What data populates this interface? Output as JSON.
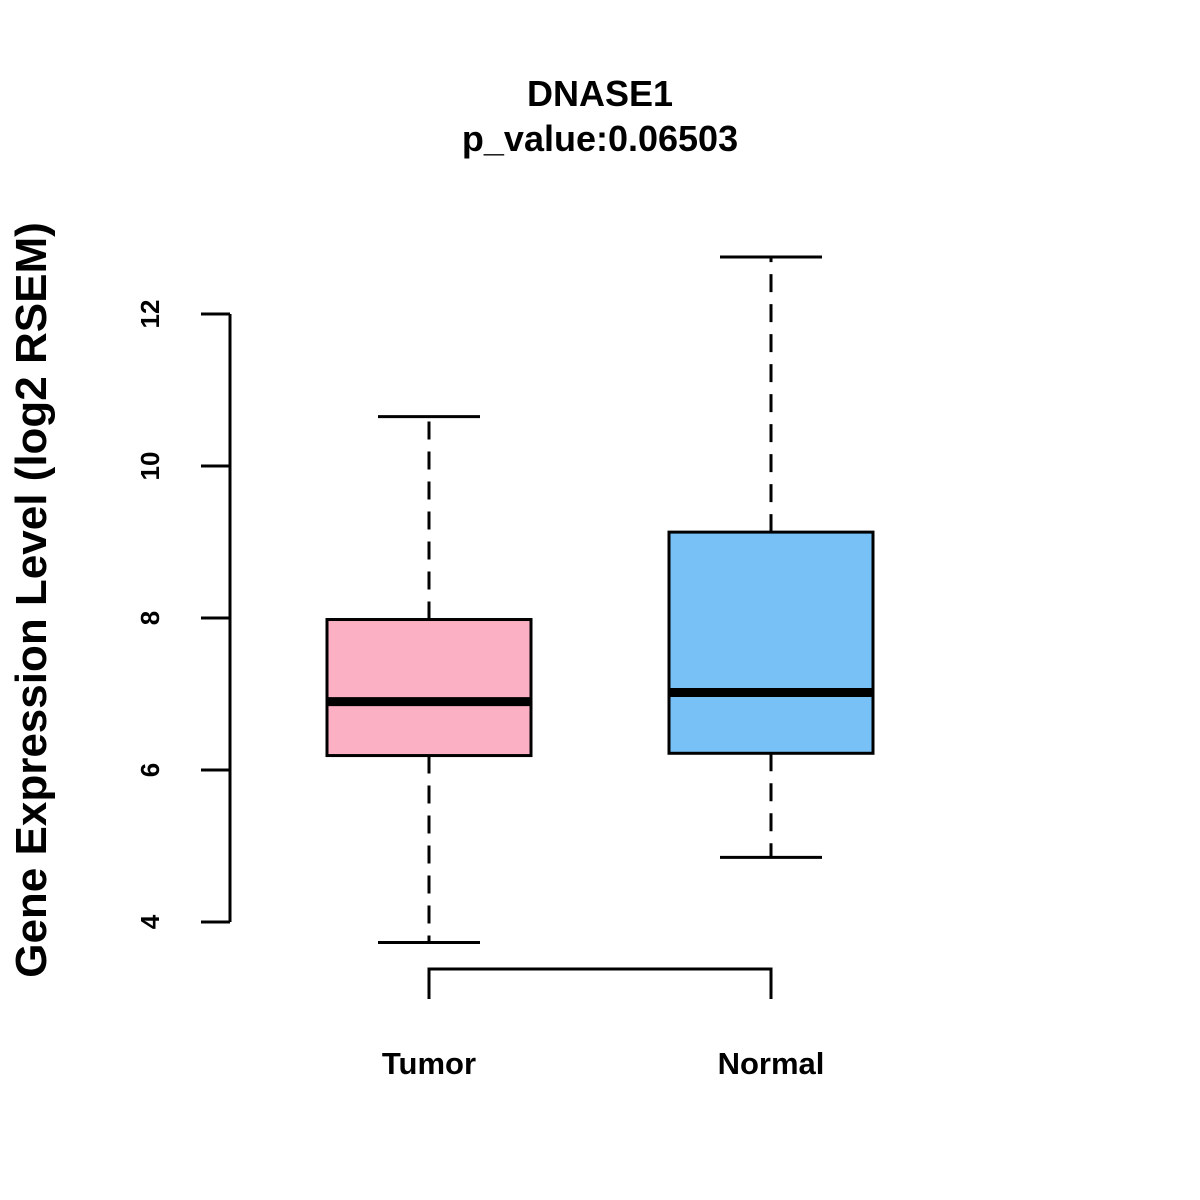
{
  "chart_data": {
    "type": "box",
    "title": "DNASE1",
    "subtitle": "p_value:0.06503",
    "xlabel": "",
    "ylabel": "Gene Expression Level (log2 RSEM)",
    "ylim": [
      4,
      12
    ],
    "yticks": [
      4,
      6,
      8,
      10,
      12
    ],
    "categories": [
      "Tumor",
      "Normal"
    ],
    "boxes": [
      {
        "name": "Tumor",
        "whisker_low": 3.73,
        "q1": 6.19,
        "median": 6.9,
        "q3": 7.98,
        "whisker_high": 10.65,
        "color": "#FBB1C3"
      },
      {
        "name": "Normal",
        "whisker_low": 4.85,
        "q1": 6.22,
        "median": 7.02,
        "q3": 9.13,
        "whisker_high": 12.75,
        "color": "#78C1F7"
      }
    ],
    "comparison_bracket": [
      "Tumor",
      "Normal"
    ]
  }
}
